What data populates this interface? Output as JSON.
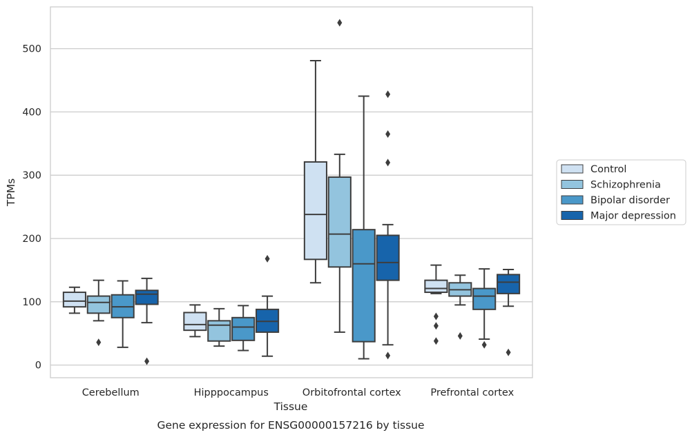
{
  "chart_data": {
    "type": "box",
    "caption": "Gene expression for ENSG00000157216 by tissue",
    "xlabel": "Tissue",
    "ylabel": "TPMs",
    "ylim": [
      -20,
      566
    ],
    "yticks": [
      0,
      100,
      200,
      300,
      400,
      500
    ],
    "grid": "horizontal",
    "legend_position": "right",
    "categories": [
      "Cerebellum",
      "Hipppocampus",
      "Orbitofrontal cortex",
      "Prefrontal cortex"
    ],
    "series": [
      {
        "name": "Control",
        "color": "#cfe1f2",
        "boxes": [
          {
            "whislo": 82,
            "q1": 92,
            "med": 101,
            "q3": 115,
            "whishi": 123,
            "fliers": []
          },
          {
            "whislo": 45,
            "q1": 55,
            "med": 64,
            "q3": 83,
            "whishi": 95,
            "fliers": []
          },
          {
            "whislo": 130,
            "q1": 167,
            "med": 238,
            "q3": 321,
            "whishi": 481,
            "fliers": []
          },
          {
            "whislo": 113,
            "q1": 115,
            "med": 121,
            "q3": 134,
            "whishi": 158,
            "fliers": [
              77,
              62,
              38
            ]
          }
        ]
      },
      {
        "name": "Schizophrenia",
        "color": "#93c4de",
        "boxes": [
          {
            "whislo": 70,
            "q1": 82,
            "med": 99,
            "q3": 109,
            "whishi": 134,
            "fliers": [
              36
            ]
          },
          {
            "whislo": 30,
            "q1": 38,
            "med": 63,
            "q3": 70,
            "whishi": 89,
            "fliers": []
          },
          {
            "whislo": 52,
            "q1": 155,
            "med": 207,
            "q3": 297,
            "whishi": 333,
            "fliers": [
              541
            ]
          },
          {
            "whislo": 95,
            "q1": 109,
            "med": 119,
            "q3": 130,
            "whishi": 142,
            "fliers": [
              46
            ]
          }
        ]
      },
      {
        "name": "Bipolar disorder",
        "color": "#4a98c9",
        "boxes": [
          {
            "whislo": 28,
            "q1": 75,
            "med": 92,
            "q3": 111,
            "whishi": 133,
            "fliers": []
          },
          {
            "whislo": 23,
            "q1": 39,
            "med": 60,
            "q3": 75,
            "whishi": 94,
            "fliers": []
          },
          {
            "whislo": 10,
            "q1": 37,
            "med": 160,
            "q3": 214,
            "whishi": 425,
            "fliers": []
          },
          {
            "whislo": 41,
            "q1": 88,
            "med": 109,
            "q3": 121,
            "whishi": 152,
            "fliers": [
              32
            ]
          }
        ]
      },
      {
        "name": "Major depression",
        "color": "#1764ab",
        "boxes": [
          {
            "whislo": 67,
            "q1": 96,
            "med": 112,
            "q3": 118,
            "whishi": 137,
            "fliers": [
              6
            ]
          },
          {
            "whislo": 14,
            "q1": 52,
            "med": 69,
            "q3": 88,
            "whishi": 109,
            "fliers": [
              168
            ]
          },
          {
            "whislo": 32,
            "q1": 134,
            "med": 162,
            "q3": 205,
            "whishi": 222,
            "fliers": [
              15,
              320,
              365,
              428
            ]
          },
          {
            "whislo": 93,
            "q1": 113,
            "med": 131,
            "q3": 143,
            "whishi": 151,
            "fliers": [
              20
            ]
          }
        ]
      }
    ]
  }
}
